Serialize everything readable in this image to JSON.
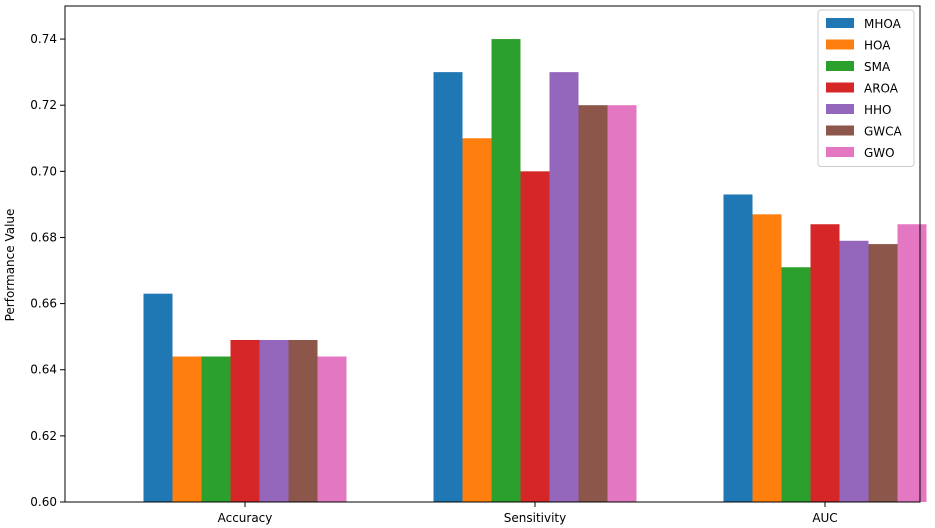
{
  "chart_data": {
    "type": "bar",
    "title": "",
    "xlabel": "",
    "ylabel": "Performance Value",
    "categories": [
      "Accuracy",
      "Sensitivity",
      "AUC"
    ],
    "ylim": [
      0.6,
      0.75
    ],
    "yticks": [
      0.6,
      0.62,
      0.64,
      0.66,
      0.68,
      0.7,
      0.72,
      0.74
    ],
    "grid": false,
    "legend_position": "top-right",
    "series": [
      {
        "name": "MHOA",
        "color": "#1f77b4",
        "values": [
          0.663,
          0.73,
          0.693
        ]
      },
      {
        "name": "HOA",
        "color": "#ff7f0e",
        "values": [
          0.644,
          0.71,
          0.687
        ]
      },
      {
        "name": "SMA",
        "color": "#2ca02c",
        "values": [
          0.644,
          0.74,
          0.671
        ]
      },
      {
        "name": "AROA",
        "color": "#d62728",
        "values": [
          0.649,
          0.7,
          0.684
        ]
      },
      {
        "name": "HHO",
        "color": "#9467bd",
        "values": [
          0.649,
          0.73,
          0.679
        ]
      },
      {
        "name": "GWCA",
        "color": "#8c564b",
        "values": [
          0.649,
          0.72,
          0.678
        ]
      },
      {
        "name": "GWO",
        "color": "#e377c2",
        "values": [
          0.644,
          0.72,
          0.684
        ]
      }
    ]
  }
}
